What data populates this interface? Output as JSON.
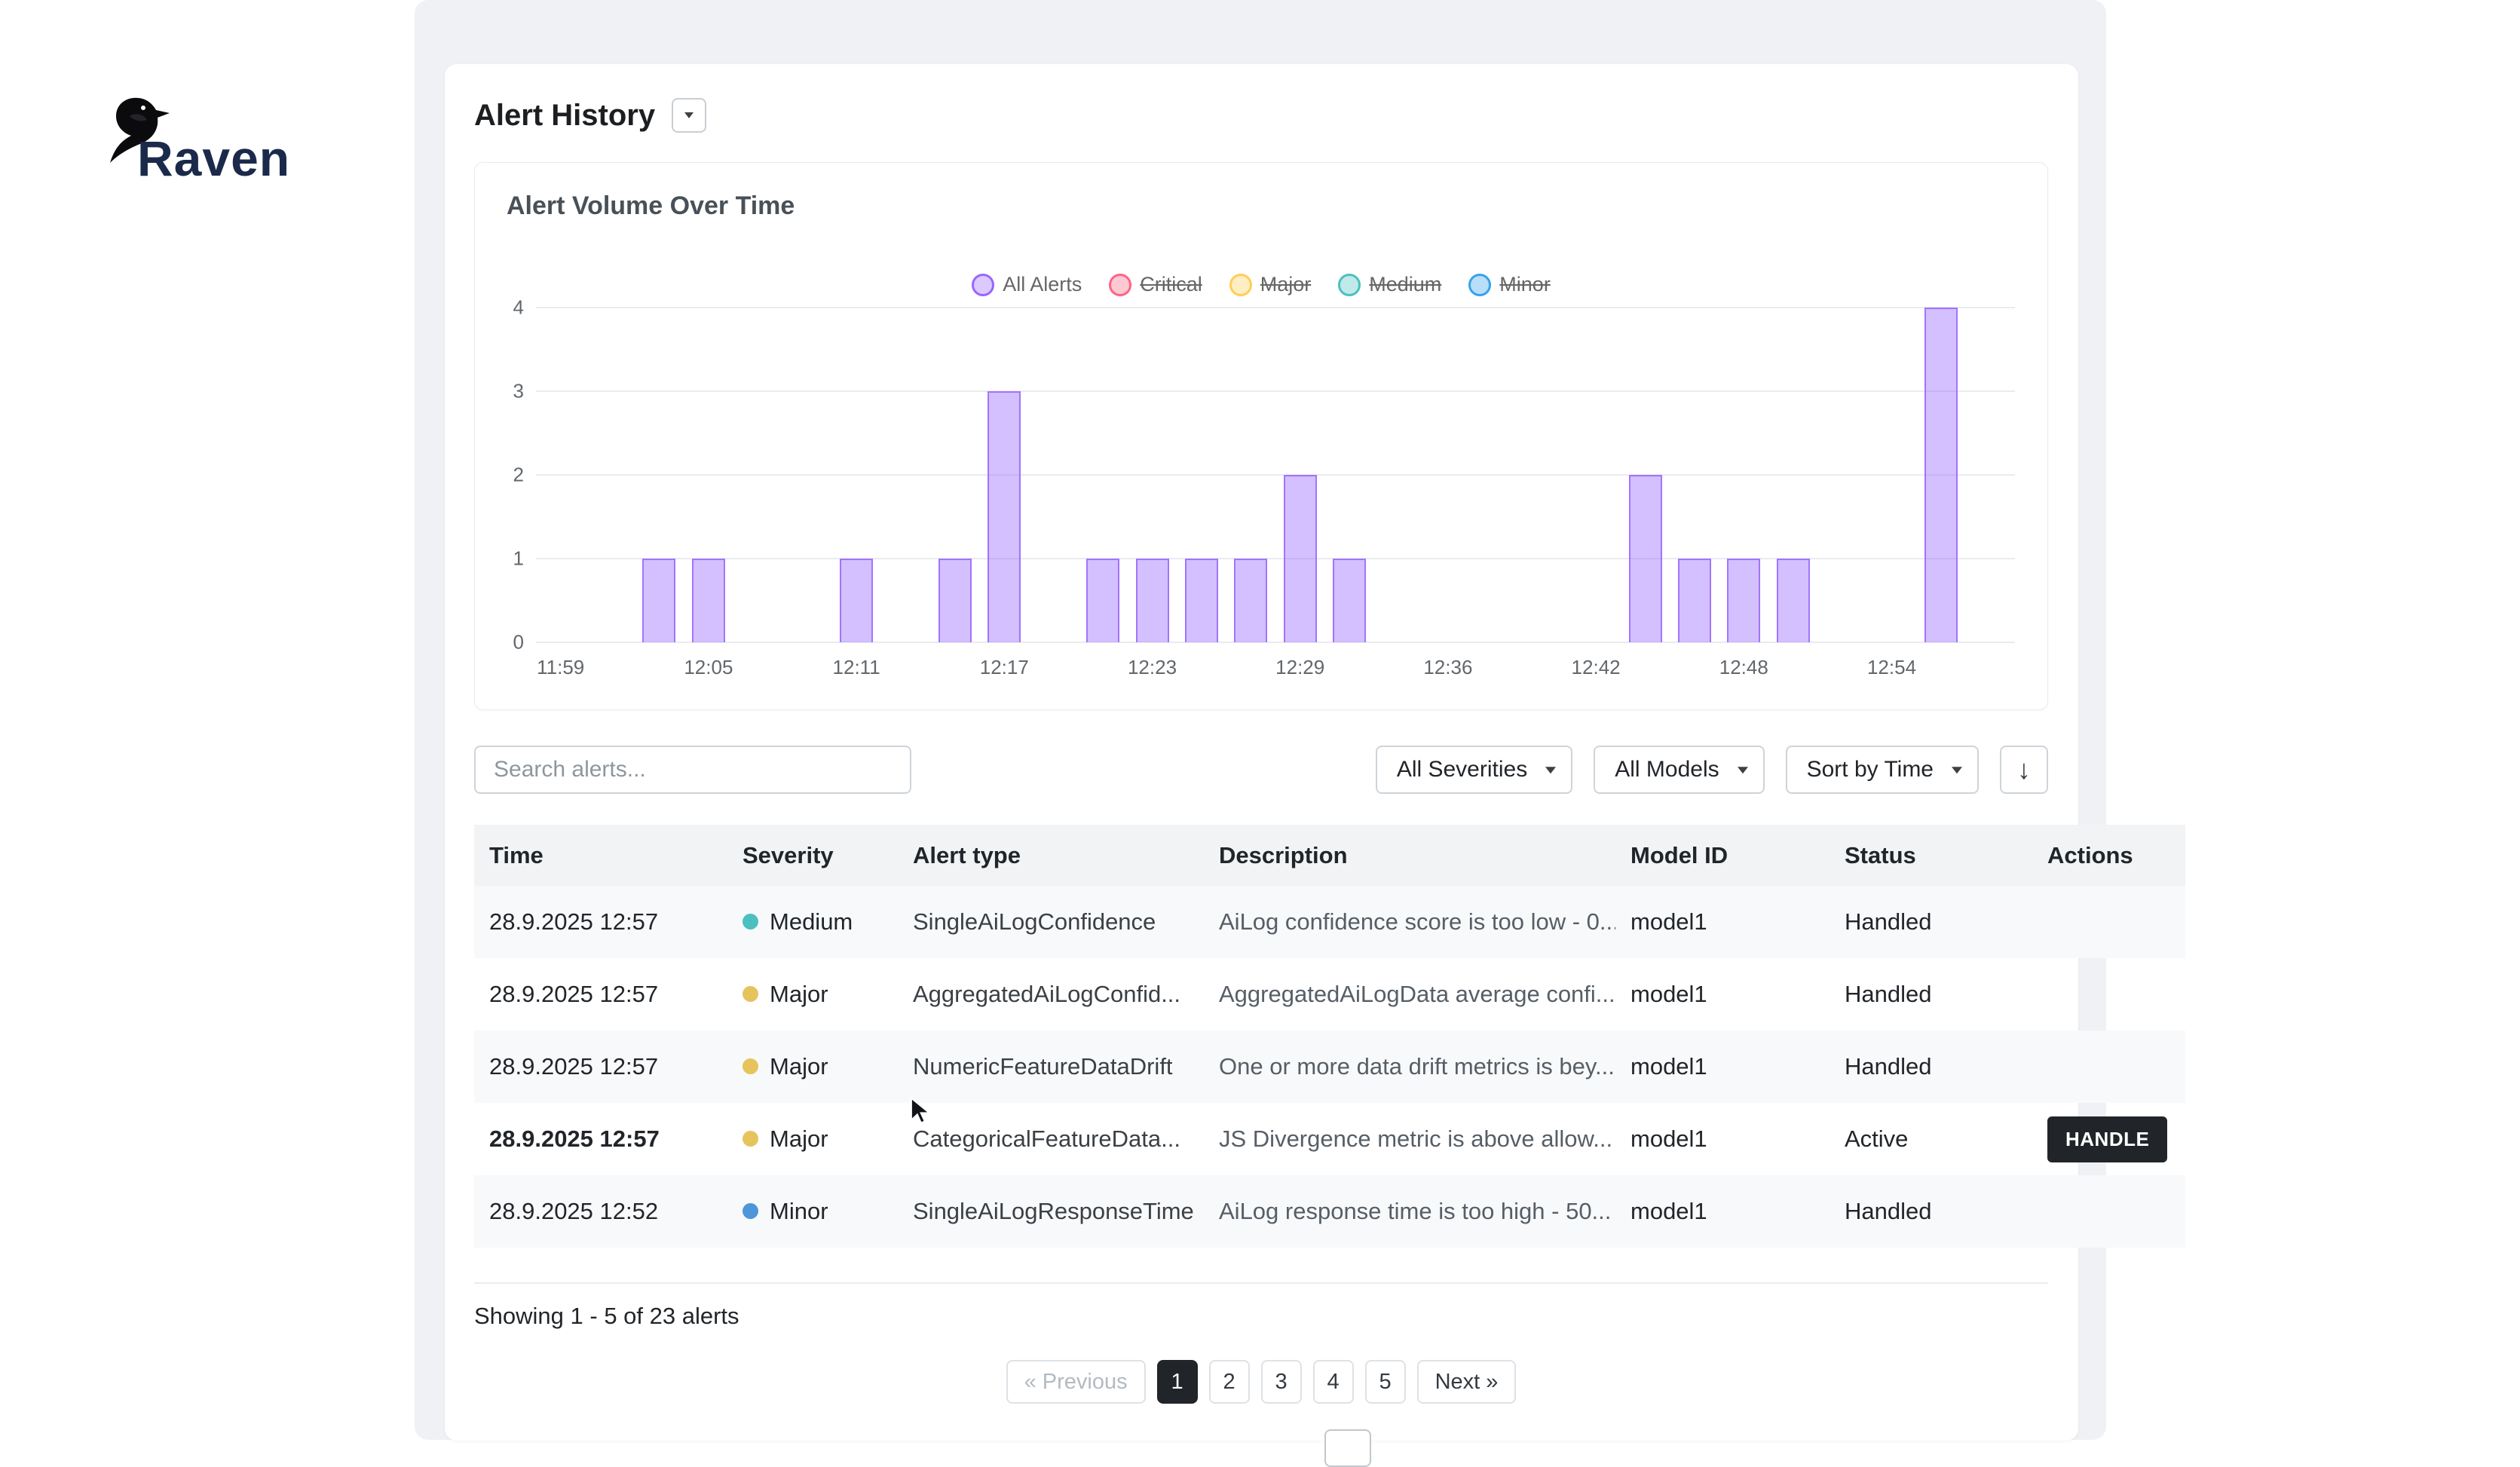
{
  "logo": {
    "text": "Raven"
  },
  "header": {
    "title": "Alert History",
    "toggle_icon": "caret-down"
  },
  "chart": {
    "title": "Alert Volume Over Time",
    "legend": [
      {
        "label": "All Alerts",
        "color": "#9966ff",
        "hidden": false
      },
      {
        "label": "Critical",
        "color": "#ff6384",
        "hidden": true
      },
      {
        "label": "Major",
        "color": "#ffce56",
        "hidden": true
      },
      {
        "label": "Medium",
        "color": "#4bc0c0",
        "hidden": true
      },
      {
        "label": "Minor",
        "color": "#36a2eb",
        "hidden": true
      }
    ]
  },
  "chart_data": {
    "type": "bar",
    "title": "Alert Volume Over Time",
    "categories": [
      "11:59",
      "12:01",
      "12:03",
      "12:05",
      "12:07",
      "12:09",
      "12:11",
      "12:13",
      "12:15",
      "12:17",
      "12:19",
      "12:21",
      "12:23",
      "12:25",
      "12:27",
      "12:29",
      "12:31",
      "12:33",
      "12:36",
      "12:38",
      "12:40",
      "12:42",
      "12:44",
      "12:46",
      "12:48",
      "12:50",
      "12:52",
      "12:54",
      "12:56",
      "12:58"
    ],
    "series": [
      {
        "name": "All Alerts",
        "color": "#9966ff",
        "values": [
          0,
          0,
          1,
          1,
          0,
          0,
          1,
          0,
          1,
          3,
          0,
          1,
          1,
          1,
          1,
          2,
          1,
          0,
          0,
          0,
          0,
          0,
          2,
          1,
          1,
          1,
          0,
          0,
          4,
          0
        ]
      }
    ],
    "hidden_series": [
      "Critical",
      "Major",
      "Medium",
      "Minor"
    ],
    "xticks_shown": [
      "11:59",
      "12:05",
      "12:11",
      "12:17",
      "12:23",
      "12:29",
      "12:36",
      "12:42",
      "12:48",
      "12:54"
    ],
    "yticks": [
      0,
      1,
      2,
      3,
      4
    ],
    "ylim": [
      0,
      4
    ],
    "grid": "horizontal",
    "legend_position": "top"
  },
  "toolbar": {
    "search_placeholder": "Search alerts...",
    "severity_filter": "All Severities",
    "model_filter": "All Models",
    "sort_by": "Sort by Time",
    "sort_direction_icon": "↓"
  },
  "table": {
    "columns": [
      "Time",
      "Severity",
      "Alert type",
      "Description",
      "Model ID",
      "Status",
      "Actions"
    ],
    "rows": [
      {
        "time": "28.9.2025 12:57",
        "severity": "Medium",
        "severity_color": "#4bc0c0",
        "alert_type": "SingleAiLogConfidence",
        "description": "AiLog confidence score is too low - 0...",
        "model_id": "model1",
        "status": "Handled",
        "action": "",
        "active": false
      },
      {
        "time": "28.9.2025 12:57",
        "severity": "Major",
        "severity_color": "#e6c35c",
        "alert_type": "AggregatedAiLogConfid...",
        "description": "AggregatedAiLogData average confi...",
        "model_id": "model1",
        "status": "Handled",
        "action": "",
        "active": false
      },
      {
        "time": "28.9.2025 12:57",
        "severity": "Major",
        "severity_color": "#e6c35c",
        "alert_type": "NumericFeatureDataDrift",
        "description": "One or more data drift metrics is bey...",
        "model_id": "model1",
        "status": "Handled",
        "action": "",
        "active": false
      },
      {
        "time": "28.9.2025 12:57",
        "severity": "Major",
        "severity_color": "#e6c35c",
        "alert_type": "CategoricalFeatureData...",
        "description": "JS Divergence metric is above allow...",
        "model_id": "model1",
        "status": "Active",
        "action": "HANDLE",
        "active": true
      },
      {
        "time": "28.9.2025 12:52",
        "severity": "Minor",
        "severity_color": "#4d96d9",
        "alert_type": "SingleAiLogResponseTime",
        "description": "AiLog response time is too high - 50...",
        "model_id": "model1",
        "status": "Handled",
        "action": "",
        "active": false
      }
    ]
  },
  "footer": {
    "showing": "Showing 1 - 5 of 23 alerts",
    "pagination": {
      "previous": "« Previous",
      "pages": [
        "1",
        "2",
        "3",
        "4",
        "5"
      ],
      "active_page": "1",
      "next": "Next »"
    }
  },
  "colors": {
    "bar_fill": "rgba(153,102,255,0.42)",
    "bar_border": "#9966ff",
    "active_page_bg": "#212529",
    "handle_button_bg": "#212529",
    "panel_bg": "#eff1f4"
  }
}
